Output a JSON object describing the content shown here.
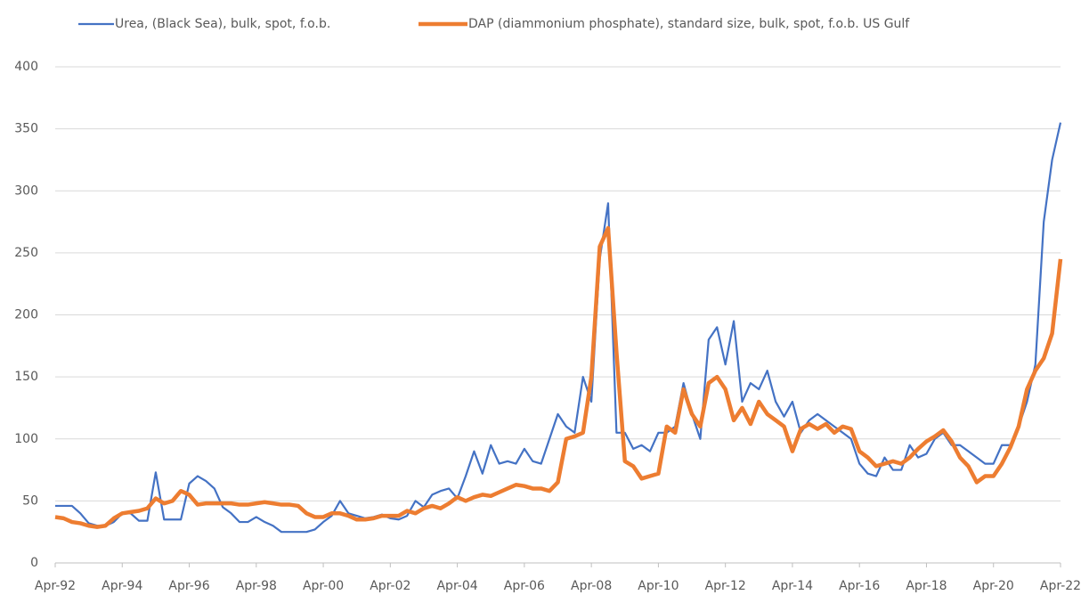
{
  "chart_data": {
    "type": "line",
    "categories": [
      "Apr-92",
      null,
      null,
      null,
      null,
      null,
      null,
      null,
      "Apr-94",
      null,
      null,
      null,
      null,
      null,
      null,
      null,
      "Apr-96",
      null,
      null,
      null,
      null,
      null,
      null,
      null,
      "Apr-98",
      null,
      null,
      null,
      null,
      null,
      null,
      null,
      "Apr-00",
      null,
      null,
      null,
      null,
      null,
      null,
      null,
      "Apr-02",
      null,
      null,
      null,
      null,
      null,
      null,
      null,
      "Apr-04",
      null,
      null,
      null,
      null,
      null,
      null,
      null,
      "Apr-06",
      null,
      null,
      null,
      null,
      null,
      null,
      null,
      "Apr-08",
      null,
      null,
      null,
      null,
      null,
      null,
      null,
      "Apr-10",
      null,
      null,
      null,
      null,
      null,
      null,
      null,
      "Apr-12",
      null,
      null,
      null,
      null,
      null,
      null,
      null,
      "Apr-14",
      null,
      null,
      null,
      null,
      null,
      null,
      null,
      "Apr-16",
      null,
      null,
      null,
      null,
      null,
      null,
      null,
      "Apr-18",
      null,
      null,
      null,
      null,
      null,
      null,
      null,
      "Apr-20",
      null,
      null,
      null,
      null,
      null,
      null,
      null,
      "Apr-22"
    ],
    "series": [
      {
        "name": "Urea, (Black Sea), bulk, spot, f.o.b.",
        "color": "#4472c4",
        "values": [
          46,
          46,
          46,
          40,
          32,
          30,
          30,
          33,
          40,
          40,
          34,
          34,
          73,
          35,
          35,
          35,
          64,
          70,
          66,
          60,
          45,
          40,
          33,
          33,
          37,
          33,
          30,
          25,
          25,
          25,
          25,
          27,
          33,
          38,
          50,
          40,
          38,
          36,
          37,
          39,
          36,
          35,
          38,
          50,
          45,
          55,
          58,
          60,
          52,
          70,
          90,
          72,
          95,
          80,
          82,
          80,
          92,
          82,
          80,
          100,
          120,
          110,
          105,
          150,
          130,
          245,
          290,
          105,
          105,
          92,
          95,
          90,
          105,
          105,
          110,
          145,
          120,
          100,
          180,
          190,
          160,
          195,
          130,
          145,
          140,
          155,
          130,
          118,
          130,
          105,
          115,
          120,
          115,
          110,
          105,
          100,
          80,
          72,
          70,
          85,
          75,
          75,
          95,
          85,
          88,
          100,
          105,
          95,
          95,
          90,
          85,
          80,
          80,
          95,
          95,
          110,
          130,
          160,
          275,
          325,
          355
        ]
      },
      {
        "name": "DAP (diammonium phosphate), standard size, bulk, spot, f.o.b. US Gulf",
        "color": "#ed7d31",
        "values": [
          37,
          36,
          33,
          32,
          30,
          29,
          30,
          36,
          40,
          41,
          42,
          44,
          52,
          48,
          50,
          58,
          55,
          47,
          48,
          48,
          48,
          48,
          47,
          47,
          48,
          49,
          48,
          47,
          47,
          46,
          40,
          37,
          37,
          40,
          40,
          38,
          35,
          35,
          36,
          38,
          38,
          38,
          42,
          40,
          44,
          46,
          44,
          48,
          53,
          50,
          53,
          55,
          54,
          57,
          60,
          63,
          62,
          60,
          60,
          58,
          65,
          100,
          102,
          105,
          150,
          255,
          270,
          170,
          82,
          78,
          68,
          70,
          72,
          110,
          105,
          140,
          120,
          110,
          145,
          150,
          140,
          115,
          125,
          112,
          130,
          120,
          115,
          110,
          90,
          108,
          112,
          108,
          112,
          105,
          110,
          108,
          90,
          85,
          78,
          80,
          82,
          80,
          85,
          92,
          98,
          102,
          107,
          98,
          85,
          78,
          65,
          70,
          70,
          80,
          93,
          110,
          140,
          155,
          165,
          185,
          245
        ]
      }
    ],
    "ylim": [
      0,
      400
    ],
    "yticks": [
      0,
      50,
      100,
      150,
      200,
      250,
      300,
      350,
      400
    ],
    "grid": true,
    "legend": "top"
  }
}
